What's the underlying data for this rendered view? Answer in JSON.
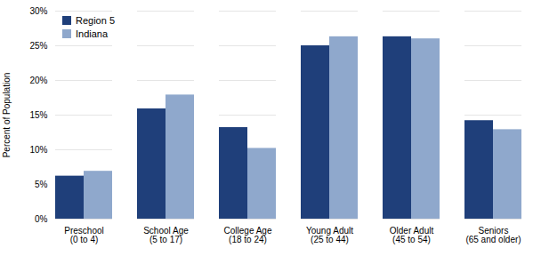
{
  "chart_data": {
    "type": "bar",
    "categories": [
      "Preschool\n(0 to 4)",
      "School Age\n(5 to 17)",
      "College Age\n(18 to 24)",
      "Young Adult\n(25 to 44)",
      "Older Adult\n(45 to 54)",
      "Seniors\n(65 and older)"
    ],
    "series": [
      {
        "name": "Region 5",
        "color": "#1F3F7A",
        "values": [
          0.062,
          0.159,
          0.132,
          0.25,
          0.263,
          0.142
        ]
      },
      {
        "name": "Indiana",
        "color": "#8FA8CC",
        "values": [
          0.069,
          0.179,
          0.102,
          0.263,
          0.26,
          0.129
        ]
      }
    ],
    "ylabel": "Percent of Population",
    "ylim": [
      0,
      0.3
    ],
    "yticks": [
      {
        "value": 0.0,
        "label": "0%"
      },
      {
        "value": 0.05,
        "label": "5%"
      },
      {
        "value": 0.1,
        "label": "10%"
      },
      {
        "value": 0.15,
        "label": "15%"
      },
      {
        "value": 0.2,
        "label": "20%"
      },
      {
        "value": 0.25,
        "label": "25%"
      },
      {
        "value": 0.3,
        "label": "30%"
      }
    ],
    "grid": true,
    "legend": "upper left"
  }
}
